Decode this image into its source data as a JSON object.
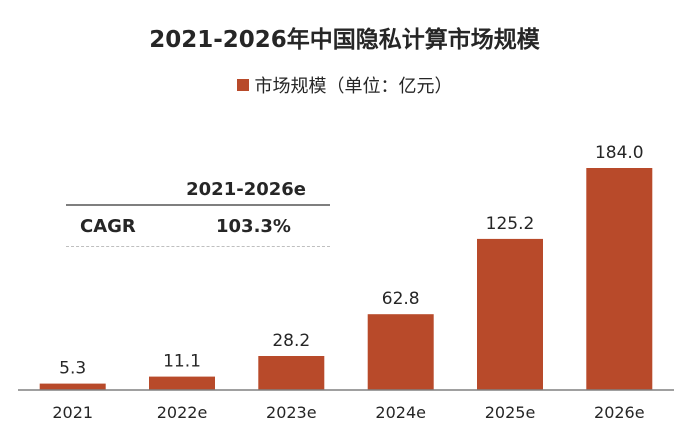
{
  "colors": {
    "bar": "#B84A2A",
    "axis": "#808080",
    "text": "#262626"
  },
  "chart_data": {
    "type": "bar",
    "title": "2021-2026年中国隐私计算市场规模",
    "categories": [
      "2021",
      "2022e",
      "2023e",
      "2024e",
      "2025e",
      "2026e"
    ],
    "series": [
      {
        "name": "市场规模（单位：亿元）",
        "values": [
          5.3,
          11.1,
          28.2,
          62.8,
          125.2,
          184.0
        ]
      }
    ],
    "data_labels": [
      "5.3",
      "11.1",
      "28.2",
      "62.8",
      "125.2",
      "184.0"
    ],
    "ylim": [
      0,
      184.0
    ],
    "grid": false,
    "legend_position": "top-center"
  },
  "cagr_table": {
    "header": "2021-2026e",
    "label": "CAGR",
    "value": "103.3%"
  }
}
